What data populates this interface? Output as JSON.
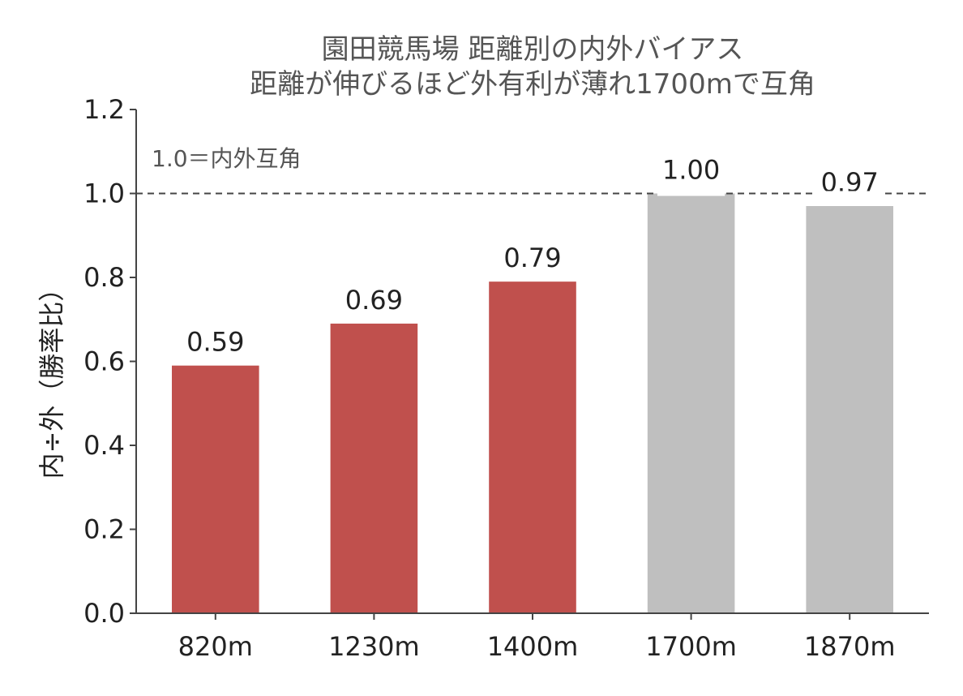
{
  "chart_data": {
    "type": "bar",
    "title": "園田競馬場 距離別の内外バイアス",
    "subtitle": "距離が伸びるほど外有利が薄れ1700mで互角",
    "xlabel": "",
    "ylabel": "内÷外（勝率比）",
    "categories": [
      "820m",
      "1230m",
      "1400m",
      "1700m",
      "1870m"
    ],
    "values": [
      0.59,
      0.69,
      0.79,
      1.0,
      0.97
    ],
    "data_labels": [
      "0.59",
      "0.69",
      "0.79",
      "1.00",
      "0.97"
    ],
    "bar_colors": [
      "#c0504d",
      "#c0504d",
      "#c0504d",
      "#bfbfbf",
      "#bfbfbf"
    ],
    "ylim": [
      0,
      1.2
    ],
    "yticks": [
      "0.0",
      "0.2",
      "0.4",
      "0.6",
      "0.8",
      "1.0",
      "1.2"
    ],
    "yticks_values": [
      0.0,
      0.2,
      0.4,
      0.6,
      0.8,
      1.0,
      1.2
    ],
    "reference_line": {
      "value": 1.0,
      "style": "dashed",
      "color": "#444444"
    },
    "annotation": "1.0＝内外互角",
    "grid": false,
    "legend": "none"
  }
}
